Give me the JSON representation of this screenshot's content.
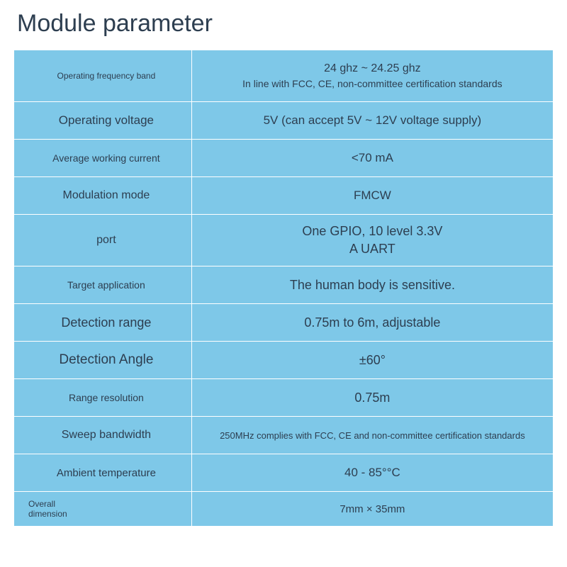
{
  "title": "Module parameter",
  "colors": {
    "background": "#ffffff",
    "table_bg": "#7ec8e8",
    "grid": "#ffffff",
    "text": "#2d3e50"
  },
  "table": {
    "label_col_width_pct": 33,
    "value_col_width_pct": 67,
    "rows": [
      {
        "label": "Operating frequency band",
        "label_fs": 12,
        "value": "24 ghz ~ 24.25 ghz",
        "value_fs": 16,
        "value2": "In line with FCC, CE, non-committee certification standards",
        "value2_fs": 14
      },
      {
        "label": "Operating voltage",
        "label_fs": 17,
        "value": "5V (can accept 5V ~ 12V voltage supply)",
        "value_fs": 17
      },
      {
        "label": "Average working current",
        "label_fs": 14,
        "value": "<70 mA",
        "value_fs": 17
      },
      {
        "label": "Modulation mode",
        "label_fs": 16,
        "value": "FMCW",
        "value_fs": 17
      },
      {
        "label": "port",
        "label_fs": 16,
        "value": "One GPIO, 10 level 3.3V",
        "value_fs": 18,
        "value2": "A UART",
        "value2_fs": 18
      },
      {
        "label": "Target application",
        "label_fs": 14,
        "value": "The human body is sensitive.",
        "value_fs": 18
      },
      {
        "label": "Detection range",
        "label_fs": 18,
        "value": "0.75m to 6m, adjustable",
        "value_fs": 18
      },
      {
        "label": "Detection Angle",
        "label_fs": 19,
        "value": "±60°",
        "value_fs": 18
      },
      {
        "label": "Range resolution",
        "label_fs": 14,
        "value": "0.75m",
        "value_fs": 18
      },
      {
        "label": "Sweep bandwidth",
        "label_fs": 16,
        "value": "250MHz complies with FCC, CE and non-committee certification standards",
        "value_fs": 13
      },
      {
        "label": "Ambient temperature",
        "label_fs": 15,
        "value": "40 - 85°°C",
        "value_fs": 17
      },
      {
        "label": "Overall\ndimension",
        "label_fs": 12,
        "value": "7mm × 35mm",
        "value_fs": 15
      }
    ]
  }
}
